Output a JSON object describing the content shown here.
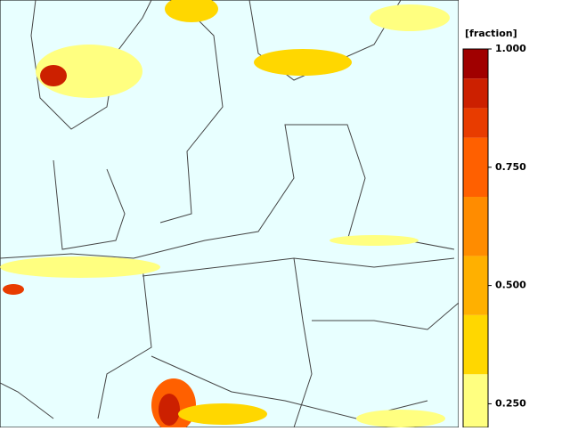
{
  "colorbar": {
    "label": "[fraction]",
    "range": [
      0.2,
      1.0
    ],
    "ticks": [
      {
        "value": 1.0,
        "label": "1.000"
      },
      {
        "value": 0.75,
        "label": "0.750"
      },
      {
        "value": 0.5,
        "label": "0.500"
      },
      {
        "value": 0.25,
        "label": "0.250"
      }
    ],
    "bands": [
      {
        "from": 0.2,
        "to": 0.3125,
        "color": "#ffff80"
      },
      {
        "from": 0.3125,
        "to": 0.4375,
        "color": "#ffd700"
      },
      {
        "from": 0.4375,
        "to": 0.5625,
        "color": "#ffb000"
      },
      {
        "from": 0.5625,
        "to": 0.6875,
        "color": "#ff8c00"
      },
      {
        "from": 0.6875,
        "to": 0.8125,
        "color": "#ff6000"
      },
      {
        "from": 0.8125,
        "to": 0.875,
        "color": "#e83c00"
      },
      {
        "from": 0.875,
        "to": 0.9375,
        "color": "#cc2000"
      },
      {
        "from": 0.9375,
        "to": 1.0,
        "color": "#a00000"
      }
    ]
  }
}
